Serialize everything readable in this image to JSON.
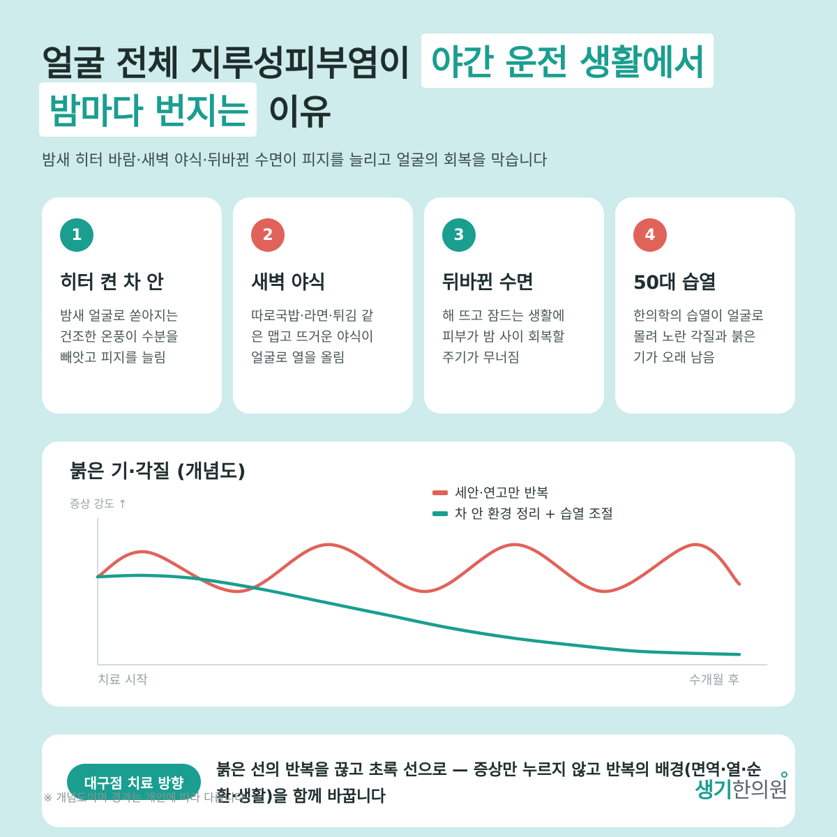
{
  "header": {
    "title_part1": "얼굴 전체 지루성피부염이",
    "title_highlight1": "야간 운전 생활에서",
    "title_highlight2": "밤마다 번지는",
    "title_part2": "이유",
    "subtitle": "밤새 히터 바람·새벽 야식·뒤바뀐 수면이 피지를 늘리고 얼굴의 회복을 막습니다"
  },
  "cards": [
    {
      "num": "1",
      "title": "히터 켠 차 안",
      "lines": [
        "밤새 얼굴로 쏟아지는",
        "건조한 온풍이 수분을",
        "빼앗고 피지를 늘림"
      ],
      "color": "#1a9e90"
    },
    {
      "num": "2",
      "title": "새벽 야식",
      "lines": [
        "따로국밥·라면·튀김 같",
        "은 맵고 뜨거운 야식이",
        "얼굴로 열을 올림"
      ],
      "color": "#e0635a"
    },
    {
      "num": "3",
      "title": "뒤바뀐 수면",
      "lines": [
        "해 뜨고 잠드는 생활에",
        "피부가 밤 사이 회복할",
        "주기가 무너짐"
      ],
      "color": "#1a9e90"
    },
    {
      "num": "4",
      "title": "50대 습열",
      "lines": [
        "한의학의 습열이 얼굴로",
        "몰려 노란 각질과 붉은",
        "기가 오래 남음"
      ],
      "color": "#e0635a"
    }
  ],
  "chart_data": {
    "type": "line",
    "title": "붉은 기·각질 (개념도)",
    "ylabel": "증상 강도 ↑",
    "x_start_label": "치료 시작",
    "x_end_label": "수개월 후",
    "xlim": [
      0,
      1
    ],
    "ylim": [
      0,
      1
    ],
    "grid": false,
    "legend_position": "top-right",
    "series": [
      {
        "name": "세안·연고만 반복",
        "color": "#e0635a",
        "x": [
          0.0,
          0.075,
          0.22,
          0.36,
          0.51,
          0.65,
          0.79,
          0.93,
          1.0
        ],
        "y": [
          0.6,
          0.77,
          0.5,
          0.82,
          0.5,
          0.82,
          0.5,
          0.82,
          0.55
        ]
      },
      {
        "name": "차 안 환경 정리 + 습열 조절",
        "color": "#1a9e90",
        "x": [
          0.0,
          0.07,
          0.15,
          0.25,
          0.35,
          0.45,
          0.55,
          0.65,
          0.75,
          0.85,
          1.0
        ],
        "y": [
          0.6,
          0.61,
          0.59,
          0.52,
          0.43,
          0.34,
          0.25,
          0.18,
          0.13,
          0.09,
          0.07
        ]
      }
    ]
  },
  "bottom": {
    "badge": "대구점 치료 방향",
    "text": "붉은 선의 반복을 끊고 초록 선으로 — 증상만 누르지 않고 반복의 배경(면역·열·순환·생활)을 함께 바꿉니다",
    "footnote": "※ 개념도이며 경과는 개인에 따라 다릅니다",
    "logo_part1": "생기",
    "logo_part2": "한의원"
  },
  "colors": {
    "background": "#cdeceb",
    "accent_teal": "#1a9e90",
    "accent_red": "#e0635a"
  }
}
